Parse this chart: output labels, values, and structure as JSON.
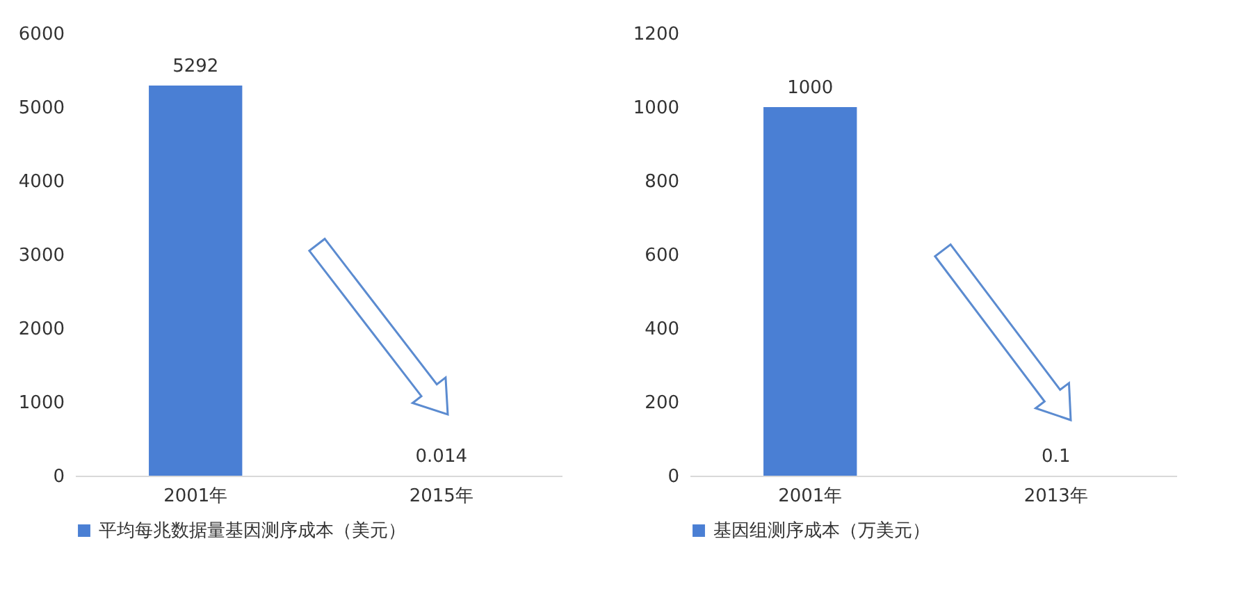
{
  "chart_data": [
    {
      "type": "bar",
      "categories": [
        "2001年",
        "2015年"
      ],
      "series": [
        {
          "name": "平均每兆数据量基因测序成本（美元）",
          "color": "#4a7fd4",
          "values": [
            5292,
            0.014
          ]
        }
      ],
      "ylim": [
        0,
        6000
      ],
      "yticks": [
        0,
        1000,
        2000,
        3000,
        4000,
        5000,
        6000
      ],
      "data_labels": true,
      "legend": "bottom"
    },
    {
      "type": "bar",
      "categories": [
        "2001年",
        "2013年"
      ],
      "series": [
        {
          "name": "基因组测序成本（万美元）",
          "color": "#4a7fd4",
          "values": [
            1000,
            0.1
          ]
        }
      ],
      "ylim": [
        0,
        1200
      ],
      "yticks": [
        0,
        200,
        400,
        600,
        800,
        1000,
        1200
      ],
      "data_labels": true,
      "legend": "bottom"
    }
  ]
}
